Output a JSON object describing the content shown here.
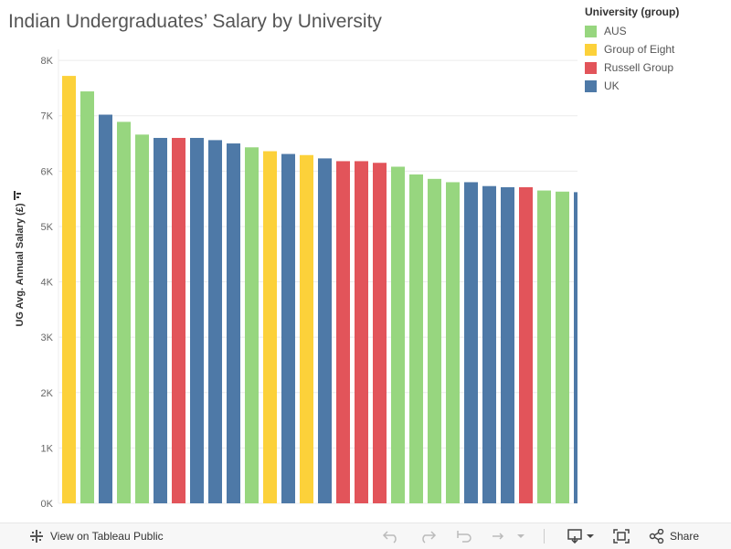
{
  "title": "Indian Undergraduates’ Salary by University",
  "legend": {
    "title": "University (group)",
    "items": [
      {
        "label": "AUS",
        "color": "#97d67f"
      },
      {
        "label": "Group of Eight",
        "color": "#fcd13a"
      },
      {
        "label": "Russell Group",
        "color": "#e2545a"
      },
      {
        "label": "UK",
        "color": "#4e79a7"
      }
    ]
  },
  "footer": {
    "view_label": "View on Tableau Public",
    "share_label": "Share"
  },
  "chart_data": {
    "type": "bar",
    "title": "Indian Undergraduates’ Salary by University",
    "xlabel": "",
    "ylabel": "UG Avg. Annual Salary (£)",
    "ylim": [
      0,
      8200
    ],
    "yticks": [
      "0K",
      "1K",
      "2K",
      "3K",
      "4K",
      "5K",
      "6K",
      "7K",
      "8K"
    ],
    "grid": true,
    "legend_position": "top-right",
    "colors": {
      "AUS": "#97d67f",
      "Group of Eight": "#fcd13a",
      "Russell Group": "#e2545a",
      "UK": "#4e79a7"
    },
    "bars": [
      {
        "group": "Group of Eight",
        "value": 7720
      },
      {
        "group": "AUS",
        "value": 7440
      },
      {
        "group": "UK",
        "value": 7020
      },
      {
        "group": "AUS",
        "value": 6890
      },
      {
        "group": "AUS",
        "value": 6660
      },
      {
        "group": "UK",
        "value": 6600
      },
      {
        "group": "Russell Group",
        "value": 6600
      },
      {
        "group": "UK",
        "value": 6600
      },
      {
        "group": "UK",
        "value": 6560
      },
      {
        "group": "UK",
        "value": 6500
      },
      {
        "group": "AUS",
        "value": 6430
      },
      {
        "group": "Group of Eight",
        "value": 6360
      },
      {
        "group": "UK",
        "value": 6310
      },
      {
        "group": "Group of Eight",
        "value": 6290
      },
      {
        "group": "UK",
        "value": 6230
      },
      {
        "group": "Russell Group",
        "value": 6180
      },
      {
        "group": "Russell Group",
        "value": 6180
      },
      {
        "group": "Russell Group",
        "value": 6150
      },
      {
        "group": "AUS",
        "value": 6080
      },
      {
        "group": "AUS",
        "value": 5940
      },
      {
        "group": "AUS",
        "value": 5860
      },
      {
        "group": "AUS",
        "value": 5800
      },
      {
        "group": "UK",
        "value": 5800
      },
      {
        "group": "UK",
        "value": 5730
      },
      {
        "group": "UK",
        "value": 5710
      },
      {
        "group": "Russell Group",
        "value": 5710
      },
      {
        "group": "AUS",
        "value": 5650
      },
      {
        "group": "AUS",
        "value": 5630
      },
      {
        "group": "UK",
        "value": 5620
      }
    ]
  }
}
